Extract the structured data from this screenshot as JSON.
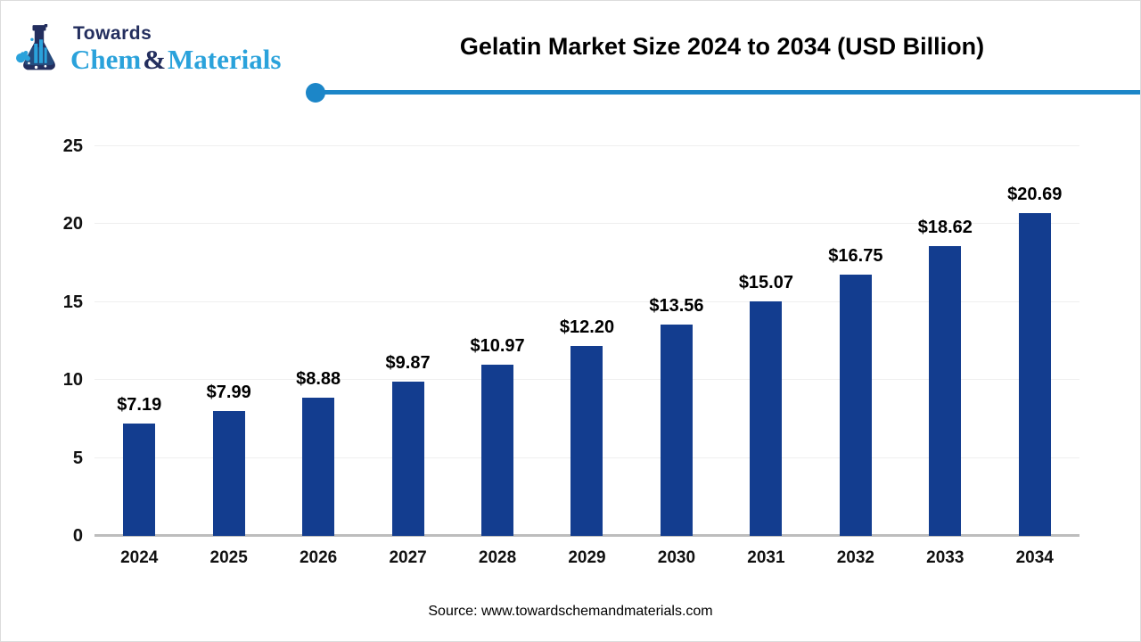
{
  "logo": {
    "line1": "Towards",
    "chem": "Chem",
    "amp": "&",
    "materials": "Materials",
    "navy": "#232e5e",
    "light_blue": "#2aa2db"
  },
  "header": {
    "title": "Gelatin Market Size 2024 to 2034 (USD Billion)",
    "divider_color": "#1c86c8"
  },
  "chart_data": {
    "type": "bar",
    "title": "Gelatin Market Size 2024 to 2034 (USD Billion)",
    "categories": [
      "2024",
      "2025",
      "2026",
      "2027",
      "2028",
      "2029",
      "2030",
      "2031",
      "2032",
      "2033",
      "2034"
    ],
    "values": [
      7.19,
      7.99,
      8.88,
      9.87,
      10.97,
      12.2,
      13.56,
      15.07,
      16.75,
      18.62,
      20.69
    ],
    "labels": [
      "$7.19",
      "$7.99",
      "$8.88",
      "$9.87",
      "$10.97",
      "$12.20",
      "$13.56",
      "$15.07",
      "$16.75",
      "$18.62",
      "$20.69"
    ],
    "xlabel": "",
    "ylabel": "",
    "ylim": [
      0,
      25
    ],
    "yticks": [
      0,
      5,
      10,
      15,
      20,
      25
    ],
    "grid": true,
    "legend": false,
    "bar_color": "#133d8f"
  },
  "footer": {
    "source": "Source: www.towardschemandmaterials.com"
  }
}
